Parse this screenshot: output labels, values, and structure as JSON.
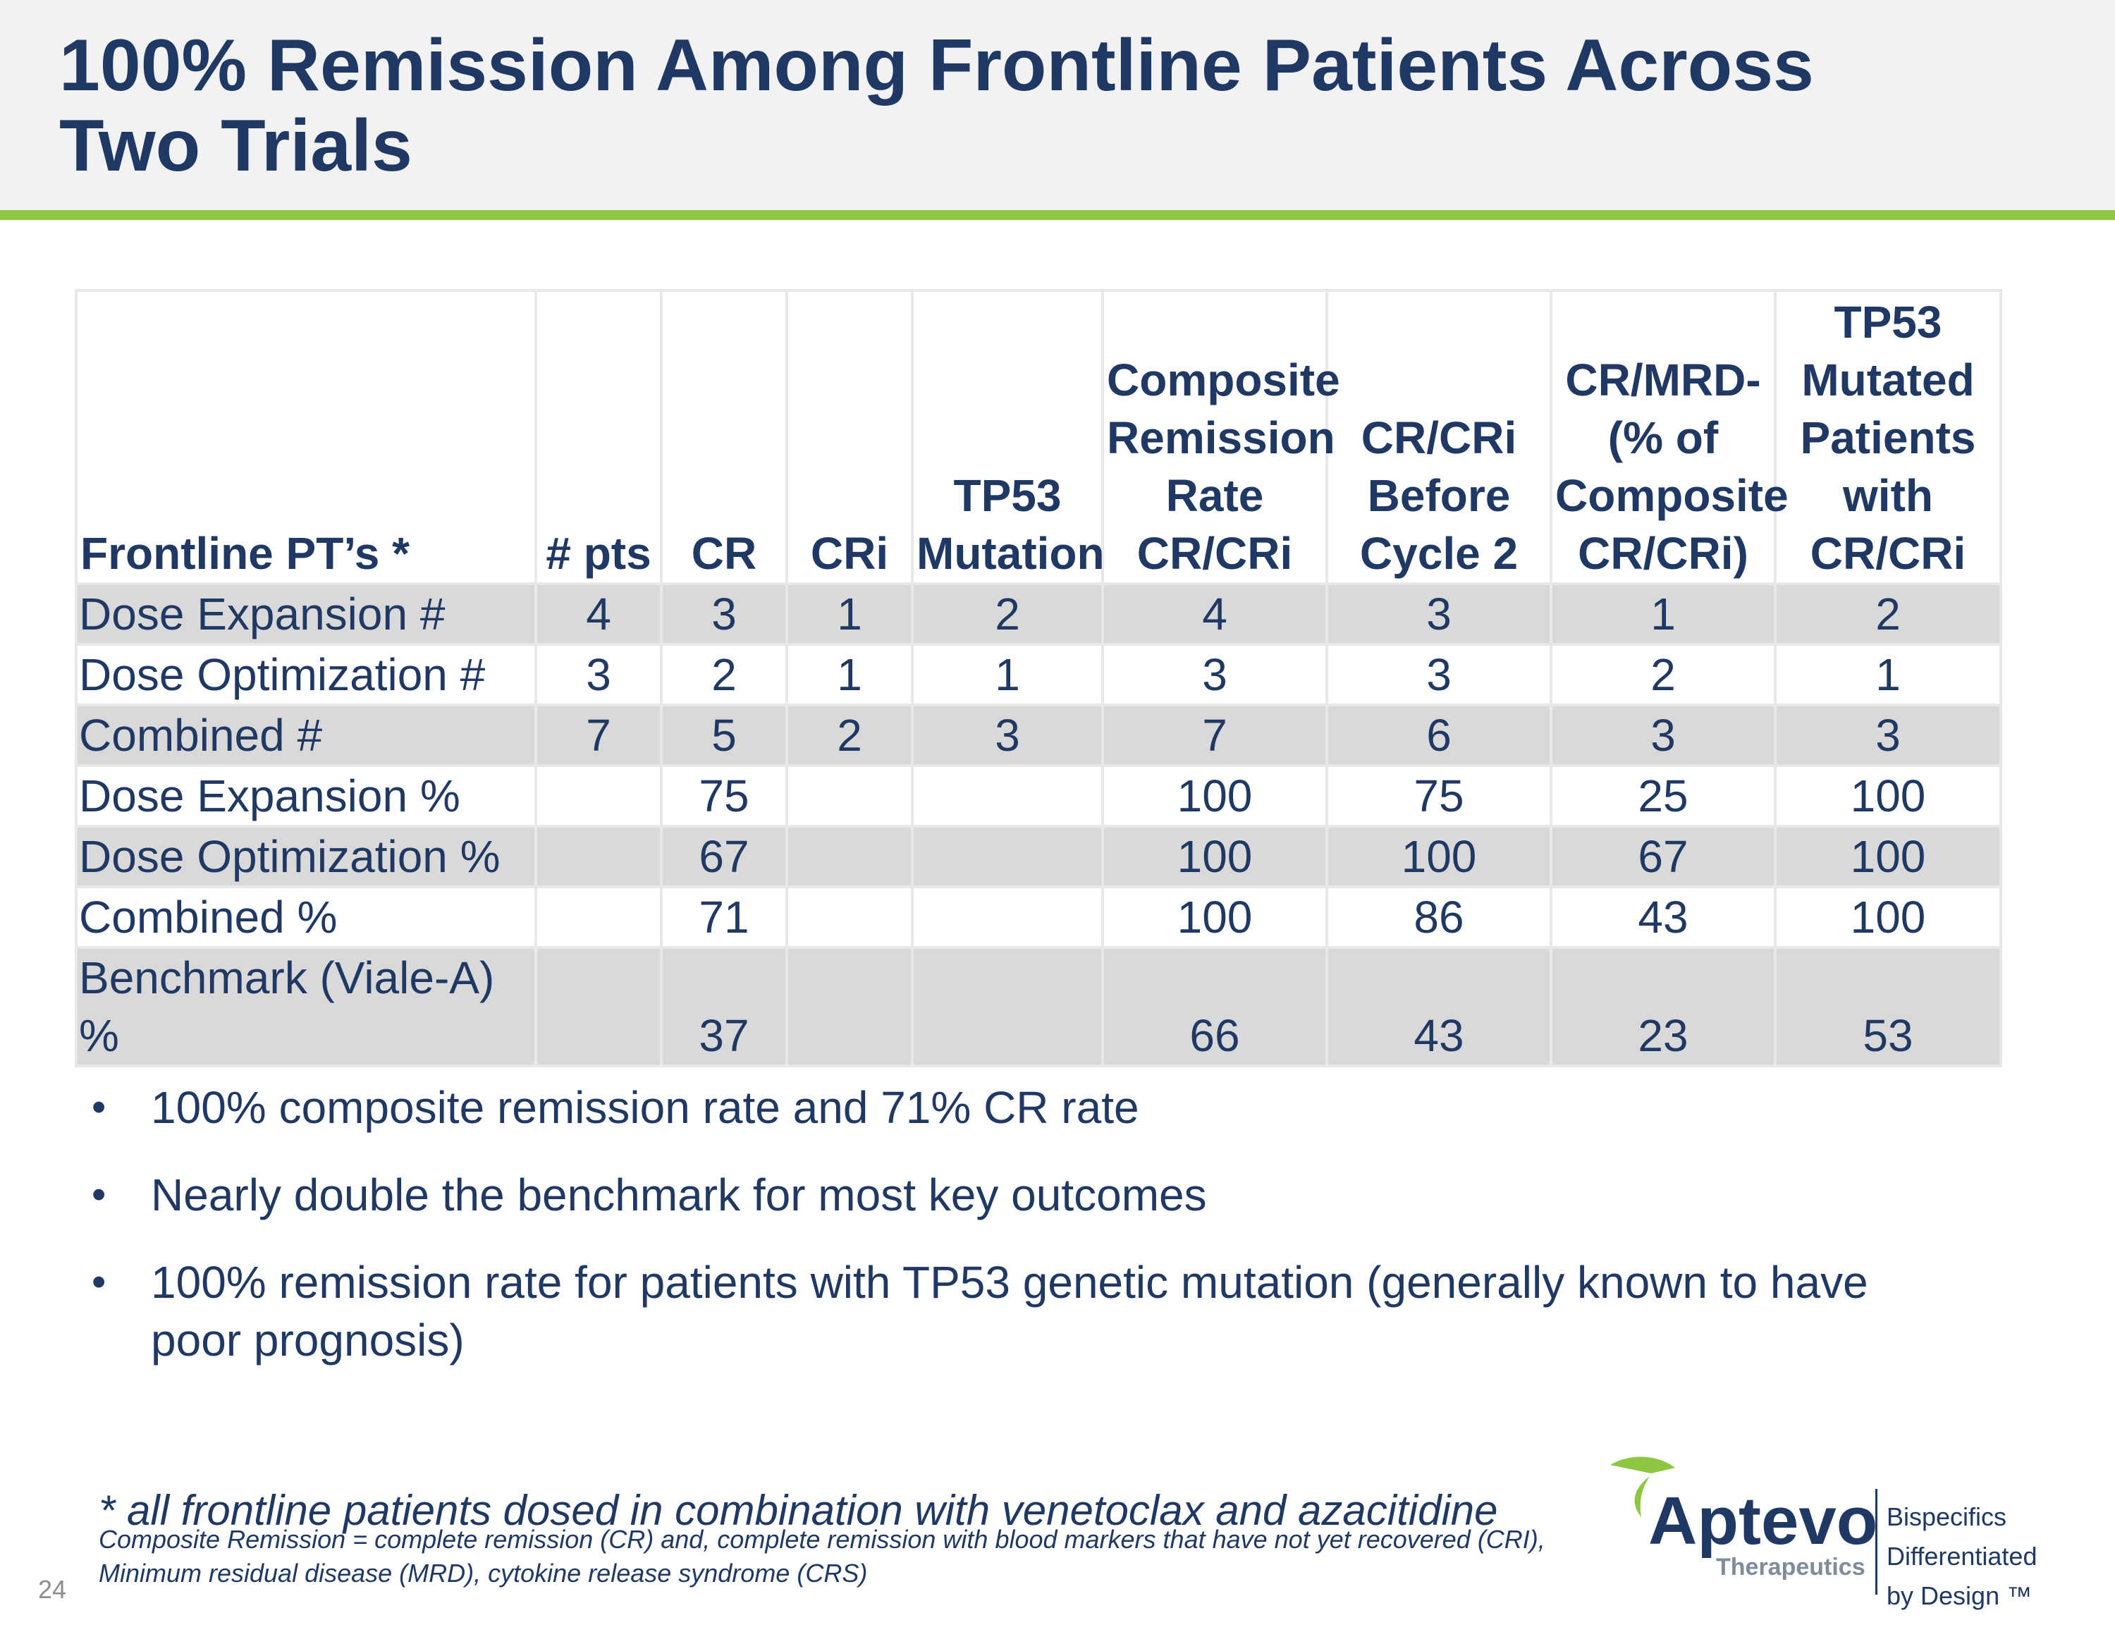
{
  "slide": {
    "title": "100% Remission Among Frontline Patients Across Two Trials",
    "page_number": "24"
  },
  "table": {
    "headers": [
      "Frontline PT’s *",
      "# pts",
      "CR",
      "CRi",
      "TP53 Mutation",
      "Composite Remission Rate CR/CRi",
      "CR/CRi Before Cycle 2",
      "CR/MRD- (% of Composite CR/CRi)",
      "TP53 Mutated Patients with CR/CRi"
    ],
    "rows": [
      {
        "label": "Dose Expansion #",
        "cells": [
          "4",
          "3",
          "1",
          "2",
          "4",
          "3",
          "1",
          "2"
        ]
      },
      {
        "label": "Dose Optimization #",
        "cells": [
          "3",
          "2",
          "1",
          "1",
          "3",
          "3",
          "2",
          "1"
        ]
      },
      {
        "label": "Combined #",
        "cells": [
          "7",
          "5",
          "2",
          "3",
          "7",
          "6",
          "3",
          "3"
        ]
      },
      {
        "label": "Dose Expansion %",
        "cells": [
          "",
          "75",
          "",
          "",
          "100",
          "75",
          "25",
          "100"
        ]
      },
      {
        "label": "Dose Optimization %",
        "cells": [
          "",
          "67",
          "",
          "",
          "100",
          "100",
          "67",
          "100"
        ]
      },
      {
        "label": "Combined %",
        "cells": [
          "",
          "71",
          "",
          "",
          "100",
          "86",
          "43",
          "100"
        ]
      },
      {
        "label": "Benchmark (Viale-A) %",
        "cells": [
          "",
          "37",
          "",
          "",
          "66",
          "43",
          "23",
          "53"
        ]
      }
    ]
  },
  "bullets": [
    "100% composite remission rate and 71% CR rate",
    "Nearly double the benchmark for most key outcomes",
    "100% remission rate for patients with TP53 genetic mutation (generally known to have poor prognosis)"
  ],
  "footnotes": {
    "main": "* all frontline patients dosed in combination with venetoclax and azacitidine",
    "definitions": "Composite Remission = complete remission (CR) and, complete remission with blood markers that have not yet recovered (CRI), Minimum residual disease (MRD), cytokine release syndrome (CRS)"
  },
  "logo": {
    "name": "Aptevo",
    "subtitle": "Therapeutics",
    "tagline_lines": [
      "Bispecifics",
      "Differentiated",
      "by Design ™"
    ],
    "colors": {
      "navy": "#1f3864",
      "green": "#8dc63f"
    }
  },
  "icons": {
    "logo_mark": "leaf-swoosh-icon",
    "bullet": "bullet-dot"
  }
}
